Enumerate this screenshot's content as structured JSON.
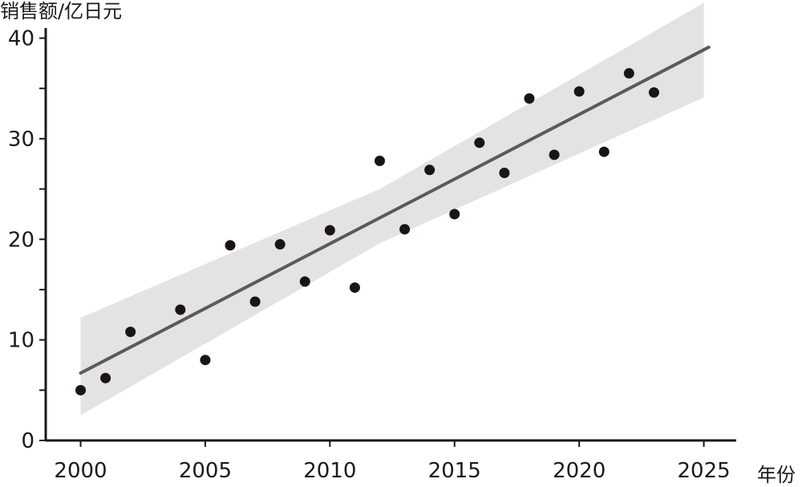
{
  "chart_data": {
    "type": "scatter",
    "title": "",
    "ylabel": "销售额/亿日元",
    "xlabel": "年份",
    "xlim": [
      1998.6,
      2026.3
    ],
    "ylim": [
      0,
      41
    ],
    "x_ticks": [
      2000,
      2005,
      2010,
      2015,
      2020,
      2025
    ],
    "y_ticks": [
      0,
      10,
      20,
      30,
      40
    ],
    "y_minor_ticks": [
      5,
      15,
      25,
      35
    ],
    "grid": false,
    "legend": "none",
    "colors": {
      "points": "#1b1416",
      "fit_line": "#5a5a5a",
      "confidence_band": "#e3e3e3",
      "axis": "#1a1a1a"
    },
    "series": [
      {
        "type": "scatter",
        "x": [
          2000,
          2001,
          2002,
          2004,
          2005,
          2006,
          2007,
          2008,
          2009,
          2010,
          2011,
          2012,
          2013,
          2014,
          2015,
          2016,
          2017,
          2018,
          2019,
          2020,
          2021,
          2022,
          2023
        ],
        "y": [
          5.0,
          6.2,
          10.8,
          13.0,
          8.0,
          19.4,
          13.8,
          19.5,
          15.8,
          20.9,
          15.2,
          27.8,
          21.0,
          26.9,
          22.5,
          29.6,
          26.6,
          34.0,
          28.4,
          34.7,
          28.7,
          36.5,
          34.6
        ]
      },
      {
        "type": "line",
        "x": [
          2000,
          2025.2
        ],
        "y": [
          6.7,
          39.1
        ]
      },
      {
        "type": "area",
        "x": [
          2000,
          2012,
          2025
        ],
        "upper": [
          12.2,
          25.0,
          43.5
        ],
        "lower": [
          2.5,
          19.6,
          34.1
        ]
      }
    ]
  }
}
